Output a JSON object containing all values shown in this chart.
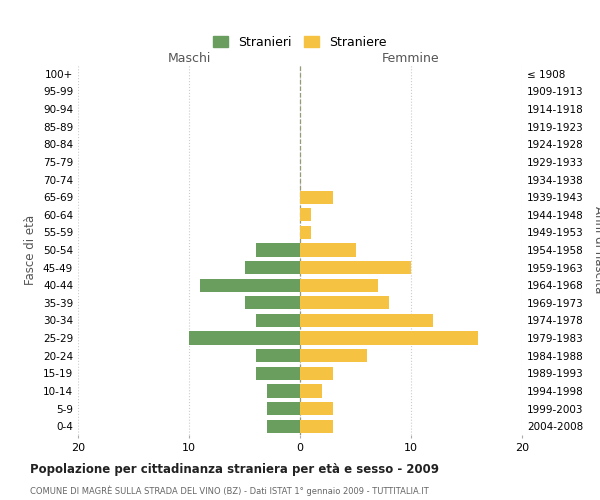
{
  "age_groups": [
    "100+",
    "95-99",
    "90-94",
    "85-89",
    "80-84",
    "75-79",
    "70-74",
    "65-69",
    "60-64",
    "55-59",
    "50-54",
    "45-49",
    "40-44",
    "35-39",
    "30-34",
    "25-29",
    "20-24",
    "15-19",
    "10-14",
    "5-9",
    "0-4"
  ],
  "birth_years": [
    "≤ 1908",
    "1909-1913",
    "1914-1918",
    "1919-1923",
    "1924-1928",
    "1929-1933",
    "1934-1938",
    "1939-1943",
    "1944-1948",
    "1949-1953",
    "1954-1958",
    "1959-1963",
    "1964-1968",
    "1969-1973",
    "1974-1978",
    "1979-1983",
    "1984-1988",
    "1989-1993",
    "1994-1998",
    "1999-2003",
    "2004-2008"
  ],
  "maschi": [
    0,
    0,
    0,
    0,
    0,
    0,
    0,
    0,
    0,
    0,
    4,
    5,
    9,
    5,
    4,
    10,
    4,
    4,
    3,
    3,
    3
  ],
  "femmine": [
    0,
    0,
    0,
    0,
    0,
    0,
    0,
    3,
    1,
    1,
    5,
    10,
    7,
    8,
    12,
    16,
    6,
    3,
    2,
    3,
    3
  ],
  "color_maschi": "#6a9e5e",
  "color_femmine": "#f5c242",
  "title": "Popolazione per cittadinanza straniera per età e sesso - 2009",
  "subtitle": "COMUNE DI MAGRÈ SULLA STRADA DEL VINO (BZ) - Dati ISTAT 1° gennaio 2009 - TUTTITALIA.IT",
  "xlabel_left": "Maschi",
  "xlabel_right": "Femmine",
  "ylabel_left": "Fasce di età",
  "ylabel_right": "Anni di nascita",
  "legend_maschi": "Stranieri",
  "legend_femmine": "Straniere",
  "xlim": 20,
  "bg_color": "#ffffff",
  "grid_color": "#cccccc",
  "bar_height": 0.75
}
